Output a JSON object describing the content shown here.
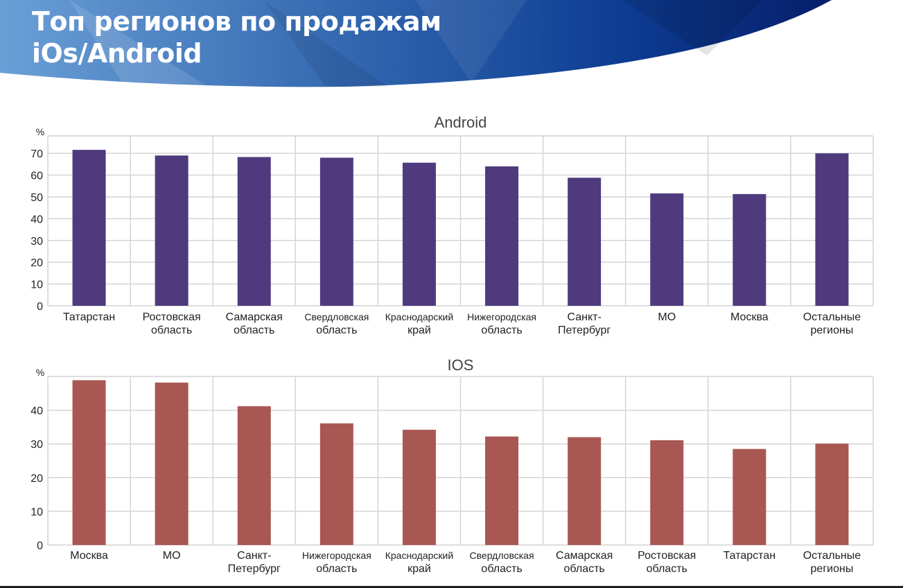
{
  "header": {
    "title_line1": "Топ регионов по продажам",
    "title_line2": "iOs/Android"
  },
  "chart_data": [
    {
      "type": "bar",
      "title": "Android",
      "ylabel": "%",
      "ylim": [
        0,
        78
      ],
      "yticks": [
        0,
        10,
        20,
        30,
        40,
        50,
        60,
        70
      ],
      "grid": true,
      "color": "#4f3a7e",
      "categories": [
        [
          "Татарстан"
        ],
        [
          "Ростовская",
          "область"
        ],
        [
          "Самарская",
          "область"
        ],
        [
          "Свердловская",
          "область"
        ],
        [
          "Краснодарский",
          "край"
        ],
        [
          "Нижегородская",
          "область"
        ],
        [
          "Санкт-",
          "Петербург"
        ],
        [
          "МО"
        ],
        [
          "Москва"
        ],
        [
          "Остальные",
          "регионы"
        ]
      ],
      "values": [
        71.6,
        69.0,
        68.3,
        68.0,
        65.7,
        64.0,
        58.8,
        51.6,
        51.3,
        70.0
      ]
    },
    {
      "type": "bar",
      "title": "IOS",
      "ylabel": "%",
      "ylim": [
        0,
        50
      ],
      "yticks": [
        0,
        10,
        20,
        30,
        40
      ],
      "grid": true,
      "color": "#a95753",
      "categories": [
        [
          "Москва"
        ],
        [
          "МО"
        ],
        [
          "Санкт-",
          "Петербург"
        ],
        [
          "Нижегородская",
          "область"
        ],
        [
          "Краснодарский",
          "край"
        ],
        [
          "Свердловская",
          "область"
        ],
        [
          "Самарская",
          "область"
        ],
        [
          "Ростовская",
          "область"
        ],
        [
          "Татарстан"
        ],
        [
          "Остальные",
          "регионы"
        ]
      ],
      "values": [
        48.9,
        48.2,
        41.2,
        36.1,
        34.2,
        32.2,
        32.0,
        31.1,
        28.5,
        30.1
      ]
    }
  ]
}
